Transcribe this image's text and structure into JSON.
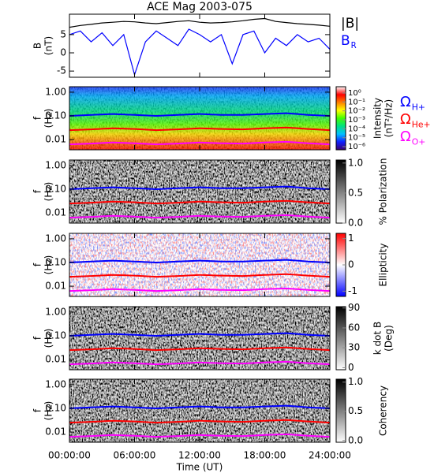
{
  "chart_data": [
    {
      "type": "line",
      "title": "ACE Mag 2003-075",
      "ylabel": [
        "B",
        "(nT)"
      ],
      "x": [
        0,
        1,
        2,
        3,
        4,
        5,
        6,
        7,
        8,
        9,
        10,
        11,
        12,
        13,
        14,
        15,
        16,
        17,
        18,
        19,
        20,
        21,
        22,
        23,
        24
      ],
      "xlim": [
        0,
        24
      ],
      "ylim": [
        -6.7,
        10.6
      ],
      "yticks": [
        -5,
        0,
        5
      ],
      "series": [
        {
          "name": "|B|",
          "color": "#000000",
          "values": [
            7,
            7.5,
            7.8,
            8.2,
            8.4,
            8.6,
            8.5,
            8.2,
            8,
            8.3,
            8.6,
            8.8,
            8.4,
            8.2,
            8.3,
            8.5,
            8.8,
            9.2,
            9.4,
            8.6,
            8.3,
            8.0,
            7.8,
            7.6,
            7.3
          ]
        },
        {
          "name": "B",
          "subscript": "R",
          "color": "#0000ff",
          "values": [
            5,
            6,
            3,
            5.5,
            2,
            5,
            -6,
            3,
            6,
            4,
            2,
            6.5,
            5,
            3,
            5,
            -3,
            5,
            6,
            0,
            4,
            2,
            5,
            3,
            4,
            1
          ]
        }
      ]
    },
    {
      "type": "spectrogram",
      "ylabel": [
        "f",
        "(Hz)"
      ],
      "x": [
        0,
        2,
        4,
        6,
        8,
        10,
        12,
        14,
        16,
        18,
        20,
        22,
        24
      ],
      "xlim": [
        0,
        24
      ],
      "ylim": [
        0.0037,
        1.7
      ],
      "log_y": true,
      "yticks": [
        {
          "value": 1,
          "label": "1.00"
        },
        {
          "value": 0.1,
          "label": "0.10"
        },
        {
          "value": 0.01,
          "label": "0.01"
        }
      ],
      "series": [
        {
          "name": "Ω",
          "subscript": "H+",
          "color": "#0000ff",
          "values": [
            0.1,
            0.11,
            0.12,
            0.11,
            0.1,
            0.11,
            0.12,
            0.11,
            0.11,
            0.12,
            0.13,
            0.11,
            0.1
          ]
        },
        {
          "name": "Ω",
          "subscript": "He+",
          "color": "#ff0000",
          "values": [
            0.025,
            0.027,
            0.03,
            0.028,
            0.025,
            0.027,
            0.03,
            0.028,
            0.027,
            0.03,
            0.032,
            0.028,
            0.025
          ]
        },
        {
          "name": "Ω",
          "subscript": "O+",
          "color": "#ff00ff",
          "values": [
            0.0063,
            0.0068,
            0.0075,
            0.007,
            0.0063,
            0.0068,
            0.0075,
            0.007,
            0.0068,
            0.0075,
            0.008,
            0.007,
            0.0063
          ]
        }
      ],
      "colorbar": {
        "label": [
          "Intensity",
          "(nT²/Hz)"
        ],
        "log": true,
        "clim": [
          4.5e-07,
          5
        ],
        "ticks": [
          {
            "value": 1,
            "label": "10⁰"
          },
          {
            "value": 0.1,
            "label": "10⁻¹"
          },
          {
            "value": 0.01,
            "label": "10⁻²"
          },
          {
            "value": 0.001,
            "label": "10⁻³"
          },
          {
            "value": 0.0001,
            "label": "10⁻⁴"
          },
          {
            "value": 1e-05,
            "label": "10⁻⁵"
          },
          {
            "value": 1e-06,
            "label": "10⁻⁶"
          }
        ],
        "colors": [
          "#3a0070",
          "#1020ff",
          "#00c0ff",
          "#00e080",
          "#40ff00",
          "#ffff00",
          "#ff8000",
          "#ff0000",
          "#ffffff"
        ]
      }
    },
    {
      "type": "spectrogram",
      "ylabel": [
        "f",
        "(Hz)"
      ],
      "x": [
        0,
        2,
        4,
        6,
        8,
        10,
        12,
        14,
        16,
        18,
        20,
        22,
        24
      ],
      "xlim": [
        0,
        24
      ],
      "ylim": [
        0.0037,
        1.7
      ],
      "log_y": true,
      "yticks": [
        {
          "value": 1,
          "label": "1.00"
        },
        {
          "value": 0.1,
          "label": "0.10"
        },
        {
          "value": 0.01,
          "label": "0.01"
        }
      ],
      "series": [
        {
          "color": "#0000ff",
          "values": [
            0.1,
            0.11,
            0.12,
            0.11,
            0.1,
            0.11,
            0.12,
            0.11,
            0.11,
            0.12,
            0.13,
            0.11,
            0.1
          ]
        },
        {
          "color": "#ff0000",
          "values": [
            0.025,
            0.027,
            0.03,
            0.028,
            0.025,
            0.027,
            0.03,
            0.028,
            0.027,
            0.03,
            0.032,
            0.028,
            0.025
          ]
        },
        {
          "color": "#ff00ff",
          "values": [
            0.0063,
            0.0068,
            0.0075,
            0.007,
            0.0063,
            0.0068,
            0.0075,
            0.007,
            0.0068,
            0.0075,
            0.008,
            0.007,
            0.0063
          ]
        }
      ],
      "colorbar": {
        "label": [
          "% Polarization"
        ],
        "clim": [
          0,
          1.05
        ],
        "ticks": [
          {
            "value": 0,
            "label": "0.0"
          },
          {
            "value": 0.5,
            "label": "0.5"
          },
          {
            "value": 1,
            "label": "1.0"
          }
        ],
        "colors": [
          "#ffffff",
          "#000000"
        ]
      }
    },
    {
      "type": "spectrogram",
      "ylabel": [
        "f",
        "(Hz)"
      ],
      "x": [
        0,
        2,
        4,
        6,
        8,
        10,
        12,
        14,
        16,
        18,
        20,
        22,
        24
      ],
      "xlim": [
        0,
        24
      ],
      "ylim": [
        0.0037,
        1.7
      ],
      "log_y": true,
      "yticks": [
        {
          "value": 1,
          "label": "1.00"
        },
        {
          "value": 0.1,
          "label": "0.10"
        },
        {
          "value": 0.01,
          "label": "0.01"
        }
      ],
      "series": [
        {
          "color": "#0000ff",
          "values": [
            0.1,
            0.11,
            0.12,
            0.11,
            0.1,
            0.11,
            0.12,
            0.11,
            0.11,
            0.12,
            0.13,
            0.11,
            0.1
          ]
        },
        {
          "color": "#ff0000",
          "values": [
            0.025,
            0.027,
            0.03,
            0.028,
            0.025,
            0.027,
            0.03,
            0.028,
            0.027,
            0.03,
            0.032,
            0.028,
            0.025
          ]
        },
        {
          "color": "#ff00ff",
          "values": [
            0.0063,
            0.0068,
            0.0075,
            0.007,
            0.0063,
            0.0068,
            0.0075,
            0.007,
            0.0068,
            0.0075,
            0.008,
            0.007,
            0.0063
          ]
        }
      ],
      "colorbar": {
        "label": [
          "Ellipticity"
        ],
        "clim": [
          -1.2,
          1.2
        ],
        "ticks": [
          -1,
          0,
          1
        ],
        "colors": [
          "#0000ff",
          "#ffffff",
          "#ff0000"
        ]
      }
    },
    {
      "type": "spectrogram",
      "ylabel": [
        "f",
        "(Hz)"
      ],
      "x": [
        0,
        2,
        4,
        6,
        8,
        10,
        12,
        14,
        16,
        18,
        20,
        22,
        24
      ],
      "xlim": [
        0,
        24
      ],
      "ylim": [
        0.0037,
        1.7
      ],
      "log_y": true,
      "yticks": [
        {
          "value": 1,
          "label": "1.00"
        },
        {
          "value": 0.1,
          "label": "0.10"
        },
        {
          "value": 0.01,
          "label": "0.01"
        }
      ],
      "series": [
        {
          "color": "#0000ff",
          "values": [
            0.1,
            0.11,
            0.12,
            0.11,
            0.1,
            0.11,
            0.12,
            0.11,
            0.11,
            0.12,
            0.13,
            0.11,
            0.1
          ]
        },
        {
          "color": "#ff0000",
          "values": [
            0.025,
            0.027,
            0.03,
            0.028,
            0.025,
            0.027,
            0.03,
            0.028,
            0.027,
            0.03,
            0.032,
            0.028,
            0.025
          ]
        },
        {
          "color": "#ff00ff",
          "values": [
            0.0063,
            0.0068,
            0.0075,
            0.007,
            0.0063,
            0.0068,
            0.0075,
            0.007,
            0.0068,
            0.0075,
            0.008,
            0.007,
            0.0063
          ]
        }
      ],
      "colorbar": {
        "label": [
          "k dot B",
          "(Deg)"
        ],
        "clim": [
          -3,
          92
        ],
        "ticks": [
          0,
          30,
          60,
          90
        ],
        "colors": [
          "#ffffff",
          "#000000"
        ]
      }
    },
    {
      "type": "spectrogram",
      "ylabel": [
        "f",
        "(Hz)"
      ],
      "x": [
        0,
        2,
        4,
        6,
        8,
        10,
        12,
        14,
        16,
        18,
        20,
        22,
        24
      ],
      "xlim": [
        0,
        24
      ],
      "ylim": [
        0.0037,
        1.7
      ],
      "log_y": true,
      "yticks": [
        {
          "value": 1,
          "label": "1.00"
        },
        {
          "value": 0.1,
          "label": "0.10"
        },
        {
          "value": 0.01,
          "label": "0.01"
        }
      ],
      "series": [
        {
          "color": "#0000ff",
          "values": [
            0.1,
            0.11,
            0.12,
            0.11,
            0.1,
            0.11,
            0.12,
            0.11,
            0.11,
            0.12,
            0.13,
            0.11,
            0.1
          ]
        },
        {
          "color": "#ff0000",
          "values": [
            0.025,
            0.027,
            0.03,
            0.028,
            0.025,
            0.027,
            0.03,
            0.028,
            0.027,
            0.03,
            0.032,
            0.028,
            0.025
          ]
        },
        {
          "color": "#ff00ff",
          "values": [
            0.0063,
            0.0068,
            0.0075,
            0.007,
            0.0063,
            0.0068,
            0.0075,
            0.007,
            0.0068,
            0.0075,
            0.008,
            0.007,
            0.0063
          ]
        }
      ],
      "colorbar": {
        "label": [
          "Coherency"
        ],
        "clim": [
          -0.03,
          1.05
        ],
        "ticks": [
          {
            "value": 0,
            "label": "0.0"
          },
          {
            "value": 0.5,
            "label": "0.5"
          },
          {
            "value": 1,
            "label": "1.0"
          }
        ],
        "colors": [
          "#ffffff",
          "#000000"
        ]
      },
      "xticks": [
        {
          "value": 0,
          "label": "00:00:00"
        },
        {
          "value": 6,
          "label": "06:00:00"
        },
        {
          "value": 12,
          "label": "12:00:00"
        },
        {
          "value": 18,
          "label": "18:00:00"
        },
        {
          "value": 24,
          "label": "24:00:00"
        }
      ],
      "xlabel": "Time (UT)"
    }
  ]
}
